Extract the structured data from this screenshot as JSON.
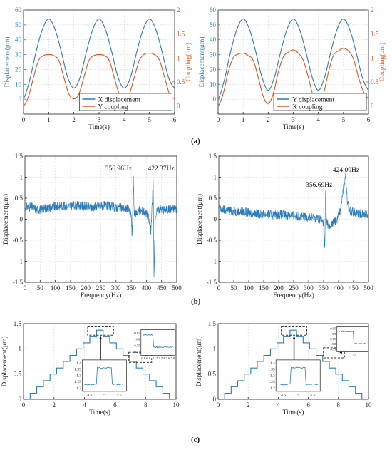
{
  "colors": {
    "blue": "#2b7bba",
    "orange": "#e0531f",
    "axis": "#222222",
    "grid": "#d9d9d9",
    "box": "#333333"
  },
  "captions": {
    "a": "(a)",
    "b": "(b)",
    "c": "(c)"
  },
  "chart_data": [
    {
      "type": "line",
      "panel": "a-left",
      "xlabel": "Time(s)",
      "ylabel": "Displacement(μm)",
      "y2label": "Coupling(μm)",
      "xlim": [
        0,
        6
      ],
      "ylim": [
        -10,
        60
      ],
      "y2lim": [
        -0.17,
        2
      ],
      "xticks": [
        "0",
        "1",
        "2",
        "3",
        "4",
        "5",
        "6"
      ],
      "yticks": [
        "0",
        "10",
        "20",
        "30",
        "40",
        "50",
        "60"
      ],
      "y2ticks": [
        "0",
        "0.5",
        "1",
        "1.5",
        "2"
      ],
      "legend_position": "bottom-center",
      "series": [
        {
          "name": "X displacement",
          "axis": "left",
          "color": "blue",
          "x": [
            0,
            0.25,
            0.5,
            0.75,
            1,
            1.25,
            1.5,
            1.75,
            2,
            2.25,
            2.5,
            2.75,
            3,
            3.25,
            3.5,
            3.75,
            4,
            4.25,
            4.5,
            4.75,
            5,
            5.25,
            5.5,
            5.75,
            6
          ],
          "y": [
            0.5,
            13,
            32,
            47,
            54,
            47,
            32,
            15,
            7.5,
            15,
            32,
            47,
            54,
            47,
            32,
            15,
            7.5,
            15,
            32,
            47,
            54,
            47,
            32,
            15,
            7.5
          ]
        },
        {
          "name": "Y coupling",
          "axis": "right",
          "color": "orange",
          "x": [
            0,
            0.2,
            0.4,
            0.6,
            0.8,
            1,
            1.2,
            1.4,
            1.6,
            1.8,
            2,
            2.2,
            2.4,
            2.6,
            2.8,
            3,
            3.2,
            3.4,
            3.6,
            3.8,
            4,
            4.2,
            4.4,
            4.6,
            4.8,
            5,
            5.2,
            5.4,
            5.6,
            5.8,
            6
          ],
          "y": [
            0,
            0.2,
            0.6,
            0.95,
            1.05,
            1.07,
            1.05,
            0.95,
            0.6,
            0.25,
            0.15,
            0.25,
            0.6,
            0.95,
            1.05,
            1.07,
            1.05,
            0.95,
            0.6,
            0.25,
            0.15,
            0.25,
            0.6,
            0.95,
            1.08,
            1.1,
            1.07,
            0.95,
            0.6,
            0.25,
            0.15
          ]
        }
      ]
    },
    {
      "type": "line",
      "panel": "a-right",
      "xlabel": "Time(s)",
      "ylabel": "Displacement(μm)",
      "y2label": "Coupling(μm)",
      "xlim": [
        0,
        6
      ],
      "ylim": [
        -10,
        60
      ],
      "y2lim": [
        -0.17,
        2
      ],
      "xticks": [
        "0",
        "1",
        "2",
        "3",
        "4",
        "5",
        "6"
      ],
      "yticks": [
        "0",
        "10",
        "20",
        "30",
        "40",
        "50",
        "60"
      ],
      "y2ticks": [
        "0",
        "0.5",
        "1",
        "1.5",
        "2"
      ],
      "legend_position": "bottom-center",
      "series": [
        {
          "name": "Y displacement",
          "axis": "left",
          "color": "blue",
          "x": [
            0,
            0.25,
            0.5,
            0.75,
            1,
            1.25,
            1.5,
            1.75,
            2,
            2.25,
            2.5,
            2.75,
            3,
            3.25,
            3.5,
            3.75,
            4,
            4.25,
            4.5,
            4.75,
            5,
            5.25,
            5.5,
            5.75,
            6
          ],
          "y": [
            0,
            13,
            32,
            47,
            54,
            47,
            32,
            15,
            6,
            15,
            32,
            47,
            54,
            47,
            32,
            15,
            6,
            15,
            32,
            47,
            54,
            47,
            32,
            15,
            6
          ]
        },
        {
          "name": "X coupling",
          "axis": "right",
          "color": "orange",
          "x": [
            0,
            0.2,
            0.4,
            0.6,
            0.8,
            1,
            1.2,
            1.4,
            1.6,
            1.8,
            2,
            2.2,
            2.4,
            2.6,
            2.8,
            3,
            3.2,
            3.4,
            3.6,
            3.8,
            4,
            4.2,
            4.4,
            4.6,
            4.8,
            5,
            5.2,
            5.4,
            5.6,
            5.8,
            6
          ],
          "y": [
            0,
            0.25,
            0.7,
            1.0,
            1.08,
            1.1,
            1.05,
            0.95,
            0.6,
            0.2,
            0.05,
            0.25,
            0.7,
            1.02,
            1.12,
            1.17,
            1.1,
            0.95,
            0.6,
            0.2,
            0.08,
            0.25,
            0.7,
            1.05,
            1.15,
            1.2,
            1.15,
            0.98,
            0.6,
            0.3,
            0.15
          ]
        }
      ]
    },
    {
      "type": "line",
      "panel": "b-left",
      "xlabel": "Frequency(Hz)",
      "ylabel": "Displacement(μm)",
      "xlim": [
        0,
        500
      ],
      "ylim": [
        -1.5,
        1.5
      ],
      "xticks": [
        "0",
        "50",
        "100",
        "150",
        "200",
        "250",
        "300",
        "350",
        "400",
        "450",
        "500"
      ],
      "yticks": [
        "-1.5",
        "-1",
        "-0.5",
        "0",
        "0.5",
        "1",
        "1.5"
      ],
      "annotations": [
        "356.96Hz",
        "422.37Hz"
      ],
      "series": [
        {
          "color": "blue",
          "x": [
            0,
            20,
            40,
            60,
            80,
            100,
            120,
            140,
            160,
            180,
            200,
            220,
            240,
            260,
            280,
            300,
            320,
            340,
            350,
            353,
            356.96,
            360,
            365,
            375,
            390,
            405,
            415,
            422.37,
            425,
            430,
            440,
            460,
            480,
            500
          ],
          "y": [
            0.28,
            0.3,
            0.22,
            0.25,
            0.28,
            0.3,
            0.32,
            0.3,
            0.33,
            0.32,
            0.3,
            0.28,
            0.32,
            0.33,
            0.3,
            0.28,
            0.27,
            0.25,
            0.1,
            -0.45,
            0.95,
            0.1,
            0.15,
            0.2,
            0.2,
            0.1,
            -0.3,
            0.9,
            -1.3,
            0.1,
            0.25,
            0.22,
            0.25,
            0.25
          ]
        }
      ]
    },
    {
      "type": "line",
      "panel": "b-right",
      "xlabel": "Frequency(Hz)",
      "ylabel": "Displacement(μm)",
      "xlim": [
        0,
        500
      ],
      "ylim": [
        -1.5,
        1.5
      ],
      "xticks": [
        "0",
        "50",
        "100",
        "150",
        "200",
        "250",
        "300",
        "350",
        "400",
        "450",
        "500"
      ],
      "yticks": [
        "-1.5",
        "-1",
        "-0.5",
        "0",
        "0.5",
        "1",
        "1.5"
      ],
      "annotations": [
        "356.69Hz",
        "424.00Hz"
      ],
      "series": [
        {
          "color": "blue",
          "x": [
            0,
            20,
            40,
            60,
            80,
            100,
            120,
            140,
            160,
            180,
            200,
            220,
            240,
            260,
            280,
            300,
            320,
            340,
            350,
            354,
            356.69,
            360,
            370,
            380,
            395,
            405,
            415,
            424,
            430,
            440,
            460,
            480,
            500
          ],
          "y": [
            0.25,
            0.22,
            0.2,
            0.18,
            0.18,
            0.15,
            0.15,
            0.12,
            0.12,
            0.1,
            0.12,
            0.1,
            0.1,
            0.08,
            0.05,
            0.05,
            0.03,
            0.0,
            -0.1,
            -0.72,
            0.68,
            -0.05,
            -0.2,
            -0.1,
            0.0,
            0.2,
            0.7,
            1.05,
            0.35,
            0.2,
            0.15,
            0.12,
            0.12
          ]
        }
      ]
    },
    {
      "type": "line",
      "panel": "c-left",
      "xlabel": "Time(s)",
      "ylabel": "Displacement(μm)",
      "xlim": [
        0,
        10
      ],
      "ylim": [
        0,
        1.5
      ],
      "xticks": [
        "0",
        "2",
        "4",
        "6",
        "8",
        "10"
      ],
      "yticks": [
        "0",
        "0.5",
        "1",
        "1.5"
      ],
      "series": [
        {
          "color": "blue",
          "kind": "staircase",
          "levels": [
            0.0,
            0.12,
            0.25,
            0.37,
            0.5,
            0.62,
            0.75,
            0.87,
            1.0,
            1.12,
            1.25,
            1.37,
            1.25,
            1.12,
            1.0,
            0.87,
            0.75,
            0.62,
            0.5,
            0.37,
            0.25,
            0.12,
            0.0
          ],
          "step": 0.4348
        }
      ],
      "insets": [
        {
          "xticks": [
            "4.5",
            "5",
            "5.5"
          ],
          "yticks": [
            "1.2",
            "1.25",
            "1.3",
            "1.35",
            "1.4"
          ]
        },
        {
          "xticks": [
            "6.6",
            "6.8",
            "7",
            "7.2",
            "7.4",
            "7.6",
            "7.8"
          ],
          "yticks": [
            "0.71",
            "0.75",
            "0.8",
            "0.85"
          ]
        }
      ]
    },
    {
      "type": "line",
      "panel": "c-right",
      "xlabel": "Time(s)",
      "ylabel": "Displacement(μm)",
      "xlim": [
        0,
        10
      ],
      "ylim": [
        0,
        1.5
      ],
      "xticks": [
        "0",
        "2",
        "4",
        "6",
        "8",
        "10"
      ],
      "yticks": [
        "0",
        "0.5",
        "1",
        "1.5"
      ],
      "series": [
        {
          "color": "blue",
          "kind": "staircase",
          "levels": [
            0.0,
            0.12,
            0.25,
            0.37,
            0.5,
            0.62,
            0.75,
            0.87,
            1.0,
            1.12,
            1.25,
            1.37,
            1.25,
            1.12,
            1.0,
            0.87,
            0.75,
            0.62,
            0.5,
            0.37,
            0.25,
            0.12,
            0.0
          ],
          "step": 0.4348
        }
      ],
      "insets": [
        {
          "xticks": [
            "4.5",
            "5",
            "5.5"
          ],
          "yticks": [
            "1.2",
            "1.25",
            "1.3",
            "1.35",
            "1.4"
          ]
        },
        {
          "xticks": [
            "7.5"
          ],
          "yticks": [
            "0.75",
            "0.8",
            "0.85",
            "0.9",
            "0.95"
          ]
        }
      ]
    }
  ]
}
